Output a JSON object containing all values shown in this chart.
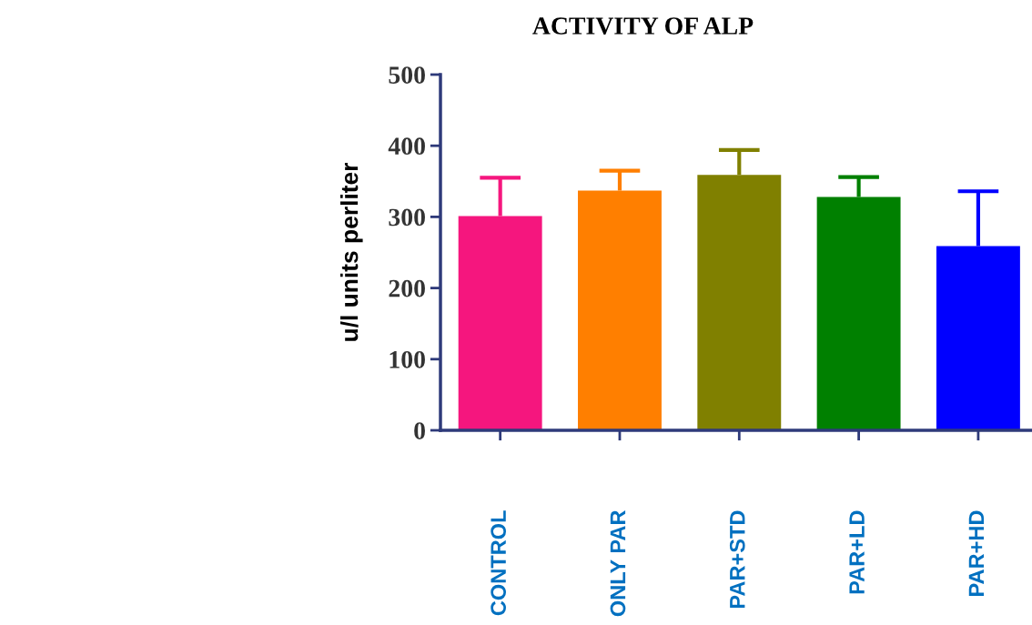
{
  "chart_data": {
    "type": "bar",
    "title": "ACTIVITY OF ALP",
    "ylabel": "u/l units perliter",
    "categories": [
      "CONTROL",
      "ONLY PAR",
      "PAR+STD",
      "PAR+LD",
      "PAR+HD"
    ],
    "values": [
      301,
      337,
      359,
      328,
      259
    ],
    "colors": [
      "#f5167e",
      "#ff7f00",
      "#808000",
      "#008000",
      "#0000ff"
    ],
    "errors": [
      [
        301,
        355
      ],
      [
        337,
        365
      ],
      [
        359,
        394
      ],
      [
        328,
        356
      ],
      [
        259,
        336
      ]
    ],
    "ylim": [
      0,
      500
    ],
    "yticks": [
      0,
      100,
      200,
      300,
      400,
      500
    ],
    "grid": false,
    "legend": false
  }
}
